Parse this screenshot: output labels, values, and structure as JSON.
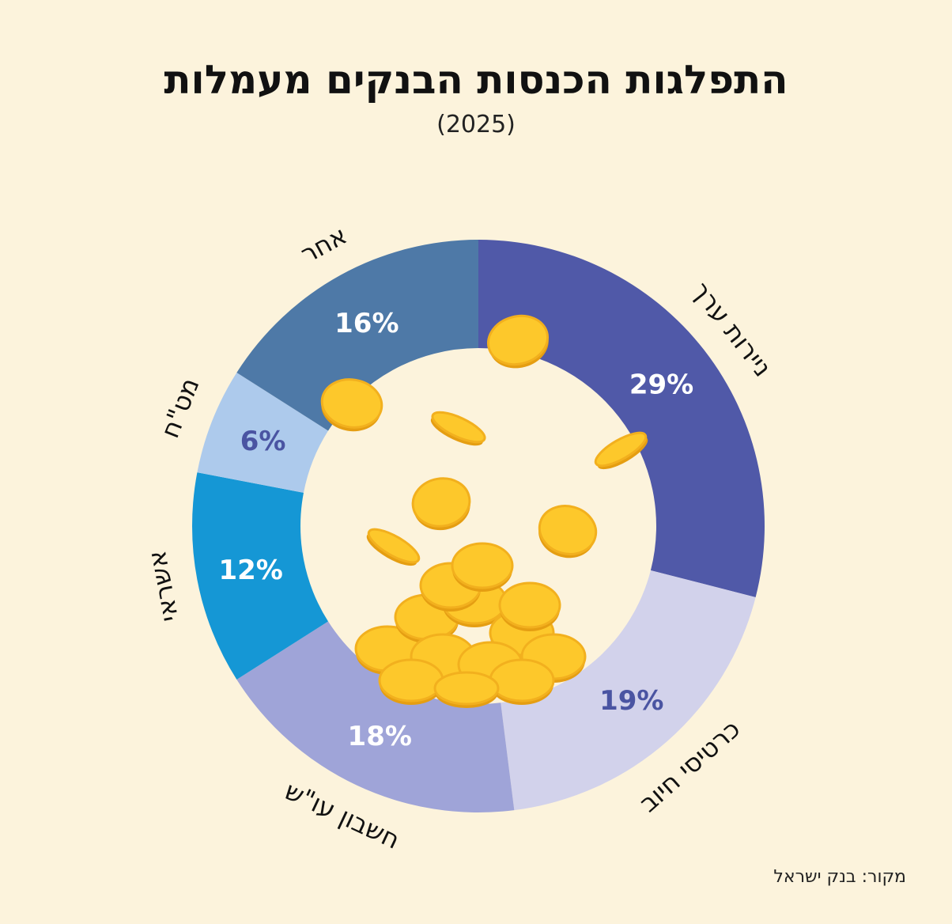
{
  "chart_data": {
    "type": "pie",
    "donut": true,
    "title": "התפלגות הכנסות הבנקים מעמלות",
    "subtitle": "(2025)",
    "source": "מקור: בנק ישראל",
    "slices": [
      {
        "label": "ניירות ערך",
        "value": 29,
        "value_label": "29%",
        "color": "#5059A8",
        "label_color": "#FFFFFF"
      },
      {
        "label": "כרטיסי חיוב",
        "value": 19,
        "value_label": "19%",
        "color": "#D2D2EB",
        "label_color": "#4A54A2"
      },
      {
        "label": "חשבון עו\"ש",
        "value": 18,
        "value_label": "18%",
        "color": "#9FA4D8",
        "label_color": "#FFFFFF"
      },
      {
        "label": "אשראי",
        "value": 12,
        "value_label": "12%",
        "color": "#1597D5",
        "label_color": "#FFFFFF"
      },
      {
        "label": "מט\"ח",
        "value": 6,
        "value_label": "6%",
        "color": "#ADCAEC",
        "label_color": "#4A54A2"
      },
      {
        "label": "אחר",
        "value": 16,
        "value_label": "16%",
        "color": "#4E79A7",
        "label_color": "#FFFFFF"
      }
    ],
    "background": "#FCF3DC",
    "center_decoration": "gold-coins"
  }
}
